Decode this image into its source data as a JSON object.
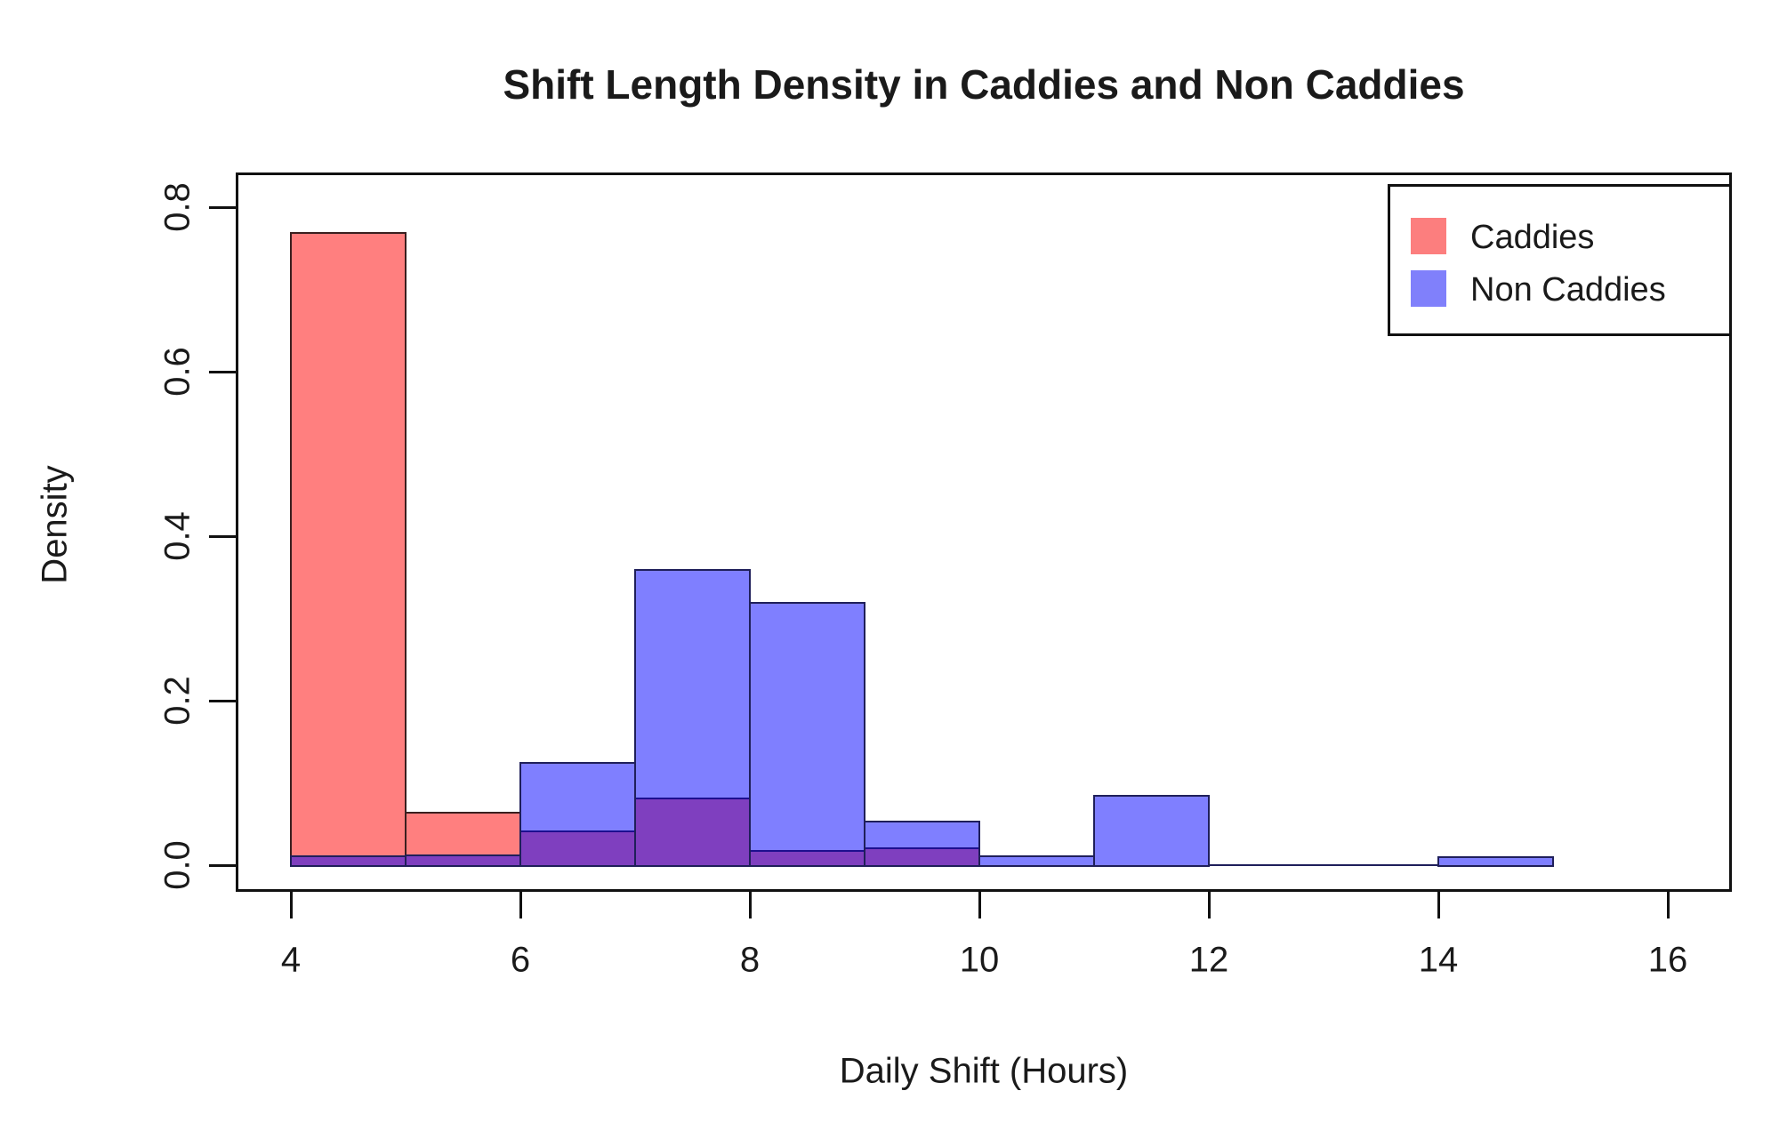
{
  "figure": {
    "title": "Shift Length Density in Caddies and Non Caddies",
    "x_label": "Daily Shift (Hours)",
    "y_label": "Density"
  },
  "legend": {
    "position": "topright",
    "items": [
      {
        "label": "Caddies",
        "color": "#FC7E7E"
      },
      {
        "label": "Non Caddies",
        "color": "#8080FB"
      }
    ]
  },
  "chart_data": {
    "type": "bar",
    "subtype": "overlaid-density-histogram",
    "title": "Shift Length Density in Caddies and Non Caddies",
    "xlabel": "Daily Shift (Hours)",
    "ylabel": "Density",
    "xlim": [
      4,
      16
    ],
    "ylim": [
      0,
      0.8
    ],
    "grid": false,
    "bin_width": 1,
    "x_ticks": [
      4,
      6,
      8,
      10,
      12,
      14,
      16
    ],
    "y_ticks": [
      "0.0",
      "0.2",
      "0.4",
      "0.6",
      "0.8"
    ],
    "y_tick_values": [
      0.0,
      0.2,
      0.4,
      0.6,
      0.8
    ],
    "legend_position": "topright",
    "overlap_color": "#8040C4",
    "frame_color": "#111111",
    "series": [
      {
        "name": "Caddies",
        "fill_hex": "#FC7E7E",
        "fill_rgba": "rgba(255,0,0,0.5)",
        "border": "#3A1F1F",
        "bin_start": 4,
        "bins": [
          {
            "from": 4,
            "to": 5,
            "density": 0.77
          },
          {
            "from": 5,
            "to": 6,
            "density": 0.065
          },
          {
            "from": 6,
            "to": 7,
            "density": 0.042
          },
          {
            "from": 7,
            "to": 8,
            "density": 0.082
          },
          {
            "from": 8,
            "to": 9,
            "density": 0.018
          },
          {
            "from": 9,
            "to": 10,
            "density": 0.022
          }
        ]
      },
      {
        "name": "Non Caddies",
        "fill_hex": "#8080FB",
        "fill_rgba": "rgba(0,0,255,0.5)",
        "border": "#1F1F5A",
        "bin_start": 4,
        "bins": [
          {
            "from": 4,
            "to": 5,
            "density": 0.012
          },
          {
            "from": 5,
            "to": 6,
            "density": 0.013
          },
          {
            "from": 6,
            "to": 7,
            "density": 0.125
          },
          {
            "from": 7,
            "to": 8,
            "density": 0.36
          },
          {
            "from": 8,
            "to": 9,
            "density": 0.32
          },
          {
            "from": 9,
            "to": 10,
            "density": 0.054
          },
          {
            "from": 10,
            "to": 11,
            "density": 0.012
          },
          {
            "from": 11,
            "to": 12,
            "density": 0.085
          },
          {
            "from": 12,
            "to": 13,
            "density": 0
          },
          {
            "from": 13,
            "to": 14,
            "density": 0
          },
          {
            "from": 14,
            "to": 15,
            "density": 0.011
          }
        ]
      }
    ]
  }
}
